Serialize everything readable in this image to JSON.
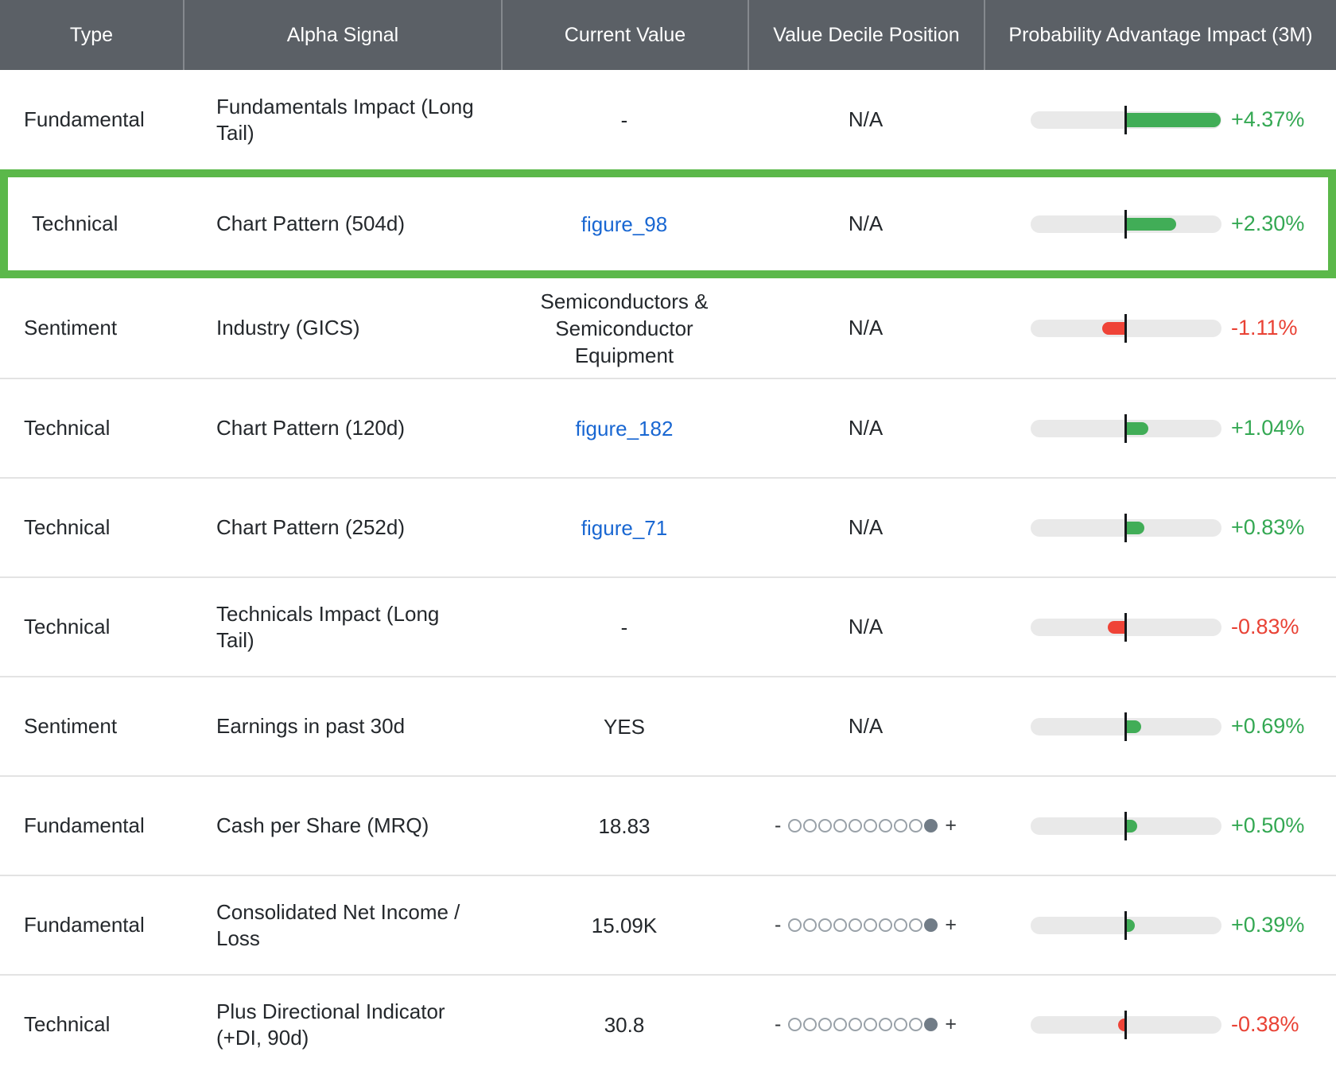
{
  "header": {
    "columns": [
      "Type",
      "Alpha Signal",
      "Current Value",
      "Value Decile Position",
      "Probability Advantage Impact (3M)"
    ]
  },
  "decile_widget": {
    "minus_label": "-",
    "plus_label": "+",
    "dot_count": 10
  },
  "colors": {
    "header_bg": "#5b6066",
    "highlight_border": "#5bb84a",
    "bar_positive": "#41ad57",
    "bar_negative": "#ef4337",
    "text_positive": "#34a853",
    "text_negative": "#e94235",
    "link": "#1967d2",
    "track": "#e9e9e9",
    "filled_dot": "#717c87"
  },
  "impact_scale_max_abs_pct": 4.37,
  "rows": [
    {
      "type": "Fundamental",
      "signal": "Fundamentals Impact (Long Tail)",
      "value": "-",
      "value_is_link": false,
      "decile": "N/A",
      "decile_filled": null,
      "impact_label": "+4.37%",
      "impact_pct": 4.37,
      "highlighted": false
    },
    {
      "type": "Technical",
      "signal": "Chart Pattern (504d)",
      "value": "figure_98",
      "value_is_link": true,
      "decile": "N/A",
      "decile_filled": null,
      "impact_label": "+2.30%",
      "impact_pct": 2.3,
      "highlighted": true
    },
    {
      "type": "Sentiment",
      "signal": "Industry (GICS)",
      "value": "Semiconductors & Semiconductor Equipment",
      "value_is_link": false,
      "decile": "N/A",
      "decile_filled": null,
      "impact_label": "-1.11%",
      "impact_pct": -1.11,
      "highlighted": false
    },
    {
      "type": "Technical",
      "signal": "Chart Pattern (120d)",
      "value": "figure_182",
      "value_is_link": true,
      "decile": "N/A",
      "decile_filled": null,
      "impact_label": "+1.04%",
      "impact_pct": 1.04,
      "highlighted": false
    },
    {
      "type": "Technical",
      "signal": "Chart Pattern (252d)",
      "value": "figure_71",
      "value_is_link": true,
      "decile": "N/A",
      "decile_filled": null,
      "impact_label": "+0.83%",
      "impact_pct": 0.83,
      "highlighted": false
    },
    {
      "type": "Technical",
      "signal": "Technicals Impact (Long Tail)",
      "value": "-",
      "value_is_link": false,
      "decile": "N/A",
      "decile_filled": null,
      "impact_label": "-0.83%",
      "impact_pct": -0.83,
      "highlighted": false
    },
    {
      "type": "Sentiment",
      "signal": "Earnings in past 30d",
      "value": "YES",
      "value_is_link": false,
      "decile": "N/A",
      "decile_filled": null,
      "impact_label": "+0.69%",
      "impact_pct": 0.69,
      "highlighted": false
    },
    {
      "type": "Fundamental",
      "signal": "Cash per Share (MRQ)",
      "value": "18.83",
      "value_is_link": false,
      "decile": "dots",
      "decile_filled": 10,
      "impact_label": "+0.50%",
      "impact_pct": 0.5,
      "highlighted": false
    },
    {
      "type": "Fundamental",
      "signal": "Consolidated Net Income / Loss",
      "value": "15.09K",
      "value_is_link": false,
      "decile": "dots",
      "decile_filled": 10,
      "impact_label": "+0.39%",
      "impact_pct": 0.39,
      "highlighted": false
    },
    {
      "type": "Technical",
      "signal": "Plus Directional Indicator (+DI, 90d)",
      "value": "30.8",
      "value_is_link": false,
      "decile": "dots",
      "decile_filled": 10,
      "impact_label": "-0.38%",
      "impact_pct": -0.38,
      "highlighted": false
    }
  ]
}
